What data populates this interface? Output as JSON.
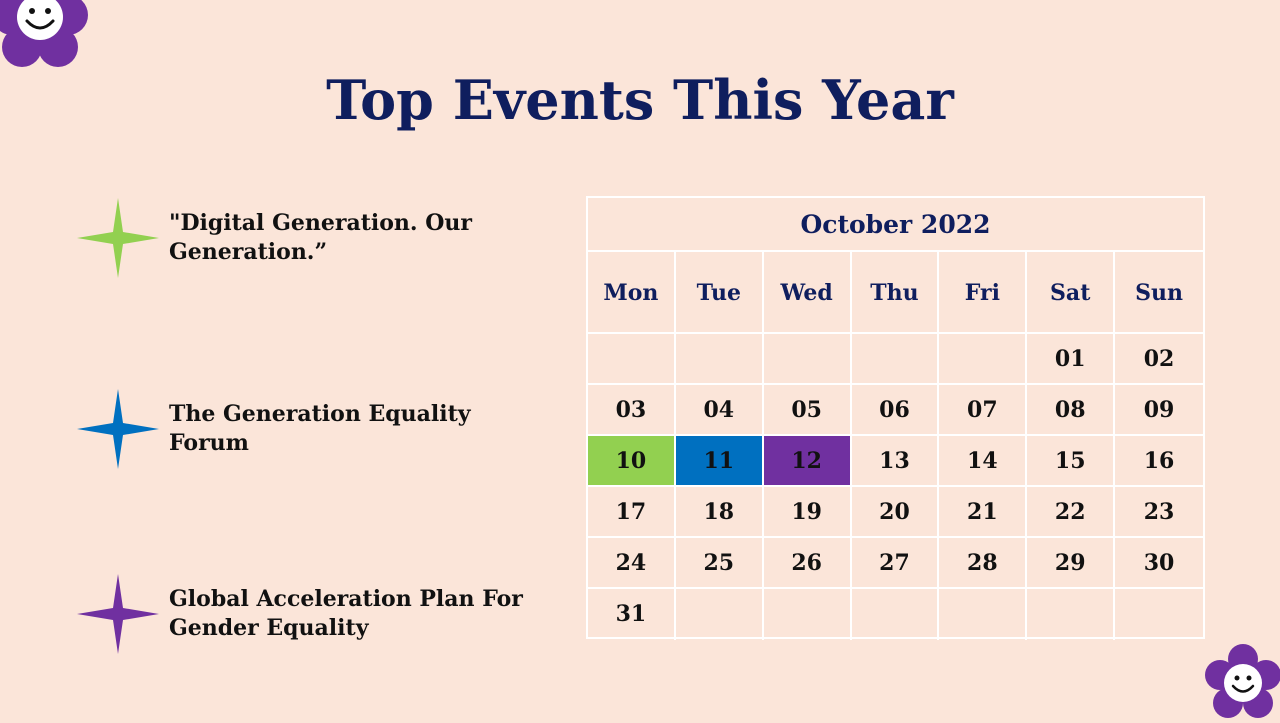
{
  "title": "Top Events This Year",
  "events": [
    {
      "label": "\"Digital Generation. Our Generation.”",
      "color": "#92D050"
    },
    {
      "label": "The Generation Equality Forum",
      "color": "#0070C0"
    },
    {
      "label": "Global Acceleration Plan For Gender Equality",
      "color": "#7030A0"
    }
  ],
  "calendar": {
    "month": "October 2022",
    "weekdays": [
      "Mon",
      "Tue",
      "Wed",
      "Thu",
      "Fri",
      "Sat",
      "Sun"
    ],
    "days": [
      "",
      "",
      "",
      "",
      "",
      "01",
      "02",
      "03",
      "04",
      "05",
      "06",
      "07",
      "08",
      "09",
      "10",
      "11",
      "12",
      "13",
      "14",
      "15",
      "16",
      "17",
      "18",
      "19",
      "20",
      "21",
      "22",
      "23",
      "24",
      "25",
      "26",
      "27",
      "28",
      "29",
      "30",
      "31",
      "",
      "",
      "",
      "",
      "",
      ""
    ],
    "highlights": {
      "10": "#92D050",
      "11": "#0070C0",
      "12": "#7030A0"
    }
  },
  "flower_color": "#7030A0"
}
